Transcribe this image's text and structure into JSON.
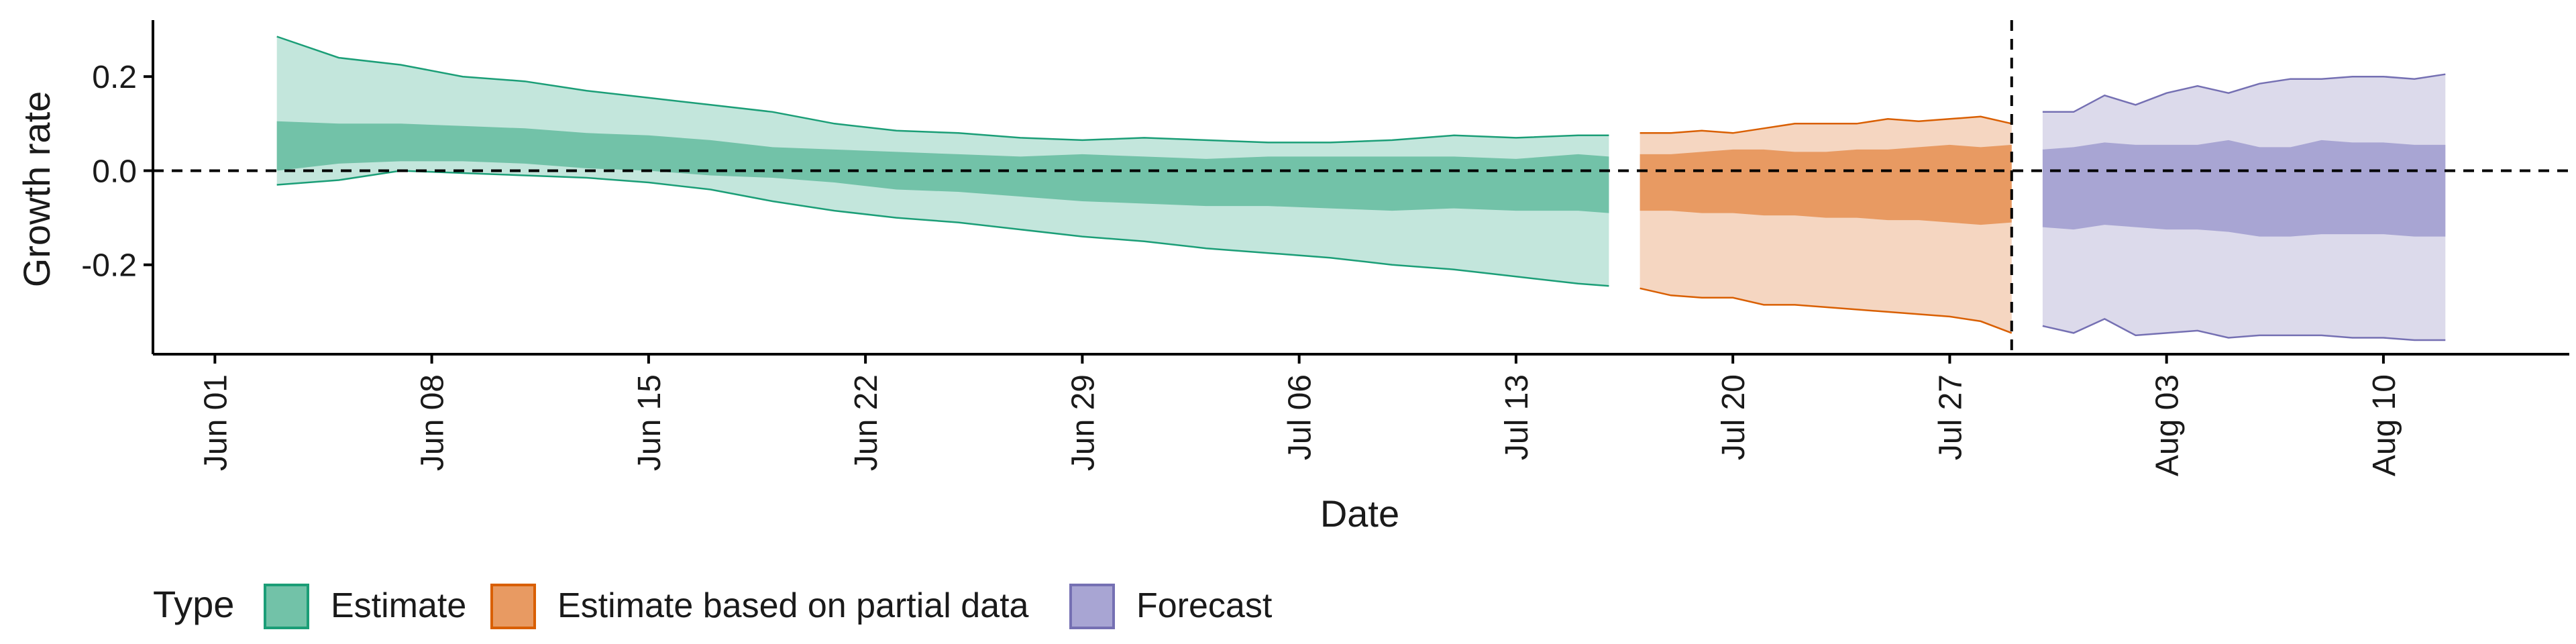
{
  "chart_data": {
    "type": "area",
    "xlabel": "Date",
    "ylabel": "Growth rate",
    "x_type": "date",
    "xlim": [
      "2020-05-30",
      "2020-08-16"
    ],
    "ylim": [
      -0.39,
      0.32
    ],
    "x_ticks": [
      {
        "date": "2020-06-01",
        "label": "Jun 01"
      },
      {
        "date": "2020-06-08",
        "label": "Jun 08"
      },
      {
        "date": "2020-06-15",
        "label": "Jun 15"
      },
      {
        "date": "2020-06-22",
        "label": "Jun 22"
      },
      {
        "date": "2020-06-29",
        "label": "Jun 29"
      },
      {
        "date": "2020-07-06",
        "label": "Jul 06"
      },
      {
        "date": "2020-07-13",
        "label": "Jul 13"
      },
      {
        "date": "2020-07-20",
        "label": "Jul 20"
      },
      {
        "date": "2020-07-27",
        "label": "Jul 27"
      },
      {
        "date": "2020-08-03",
        "label": "Aug 03"
      },
      {
        "date": "2020-08-10",
        "label": "Aug 10"
      }
    ],
    "y_ticks": [
      {
        "value": 0.2,
        "label": "0.2"
      },
      {
        "value": 0.0,
        "label": "0.0"
      },
      {
        "value": -0.2,
        "label": "-0.2"
      }
    ],
    "reference_lines": {
      "horizontal_y": 0.0,
      "vertical_date": "2020-07-29",
      "style": "dashed"
    },
    "grid": false,
    "legend": {
      "title": "Type",
      "position": "bottom-left",
      "entries": [
        "Estimate",
        "Estimate based on partial data",
        "Forecast"
      ]
    },
    "series": [
      {
        "name": "Estimate",
        "fill_outer": "#c3e6dc",
        "line_outer": "#1b9e77",
        "fill_inner": "#72c2a8",
        "dates": [
          "2020-06-03",
          "2020-06-05",
          "2020-06-07",
          "2020-06-09",
          "2020-06-11",
          "2020-06-13",
          "2020-06-15",
          "2020-06-17",
          "2020-06-19",
          "2020-06-21",
          "2020-06-23",
          "2020-06-25",
          "2020-06-27",
          "2020-06-29",
          "2020-07-01",
          "2020-07-03",
          "2020-07-05",
          "2020-07-07",
          "2020-07-09",
          "2020-07-11",
          "2020-07-13",
          "2020-07-15",
          "2020-07-16"
        ],
        "outer_upper": [
          0.285,
          0.24,
          0.225,
          0.2,
          0.19,
          0.17,
          0.155,
          0.14,
          0.125,
          0.1,
          0.085,
          0.08,
          0.07,
          0.065,
          0.07,
          0.065,
          0.06,
          0.06,
          0.065,
          0.075,
          0.07,
          0.075,
          0.075
        ],
        "inner_upper": [
          0.105,
          0.1,
          0.1,
          0.095,
          0.09,
          0.08,
          0.075,
          0.065,
          0.05,
          0.045,
          0.04,
          0.035,
          0.03,
          0.035,
          0.03,
          0.025,
          0.03,
          0.03,
          0.03,
          0.03,
          0.025,
          0.035,
          0.03
        ],
        "inner_lower": [
          0.0,
          0.015,
          0.02,
          0.02,
          0.015,
          0.005,
          0.0,
          -0.01,
          -0.015,
          -0.025,
          -0.04,
          -0.045,
          -0.055,
          -0.065,
          -0.07,
          -0.075,
          -0.075,
          -0.08,
          -0.085,
          -0.08,
          -0.085,
          -0.085,
          -0.09
        ],
        "outer_lower": [
          -0.03,
          -0.02,
          0.0,
          -0.005,
          -0.01,
          -0.015,
          -0.025,
          -0.04,
          -0.065,
          -0.085,
          -0.1,
          -0.11,
          -0.125,
          -0.14,
          -0.15,
          -0.165,
          -0.175,
          -0.185,
          -0.2,
          -0.21,
          -0.225,
          -0.24,
          -0.245
        ]
      },
      {
        "name": "Estimate based on partial data",
        "fill_outer": "#f5d6c1",
        "line_outer": "#d95f02",
        "fill_inner": "#e89a62",
        "dates": [
          "2020-07-17",
          "2020-07-18",
          "2020-07-19",
          "2020-07-20",
          "2020-07-21",
          "2020-07-22",
          "2020-07-23",
          "2020-07-24",
          "2020-07-25",
          "2020-07-26",
          "2020-07-27",
          "2020-07-28",
          "2020-07-29"
        ],
        "outer_upper": [
          0.08,
          0.08,
          0.085,
          0.08,
          0.09,
          0.1,
          0.1,
          0.1,
          0.11,
          0.105,
          0.11,
          0.115,
          0.1
        ],
        "inner_upper": [
          0.035,
          0.035,
          0.04,
          0.045,
          0.045,
          0.04,
          0.04,
          0.045,
          0.045,
          0.05,
          0.055,
          0.05,
          0.055
        ],
        "inner_lower": [
          -0.085,
          -0.085,
          -0.09,
          -0.09,
          -0.095,
          -0.095,
          -0.1,
          -0.1,
          -0.105,
          -0.105,
          -0.11,
          -0.115,
          -0.11
        ],
        "outer_lower": [
          -0.25,
          -0.265,
          -0.27,
          -0.27,
          -0.285,
          -0.285,
          -0.29,
          -0.295,
          -0.3,
          -0.305,
          -0.31,
          -0.32,
          -0.345
        ]
      },
      {
        "name": "Forecast",
        "fill_outer": "#dcdaeb",
        "line_outer": "#7570b3",
        "fill_inner": "#a8a5d3",
        "dates": [
          "2020-07-30",
          "2020-07-31",
          "2020-08-01",
          "2020-08-02",
          "2020-08-03",
          "2020-08-04",
          "2020-08-05",
          "2020-08-06",
          "2020-08-07",
          "2020-08-08",
          "2020-08-09",
          "2020-08-10",
          "2020-08-11",
          "2020-08-12"
        ],
        "outer_upper": [
          0.125,
          0.125,
          0.16,
          0.14,
          0.165,
          0.18,
          0.165,
          0.185,
          0.195,
          0.195,
          0.2,
          0.2,
          0.195,
          0.205
        ],
        "inner_upper": [
          0.045,
          0.05,
          0.06,
          0.055,
          0.055,
          0.055,
          0.065,
          0.05,
          0.05,
          0.065,
          0.06,
          0.06,
          0.055,
          0.055
        ],
        "inner_lower": [
          -0.12,
          -0.125,
          -0.115,
          -0.12,
          -0.125,
          -0.125,
          -0.13,
          -0.14,
          -0.14,
          -0.135,
          -0.135,
          -0.135,
          -0.14,
          -0.14
        ],
        "outer_lower": [
          -0.33,
          -0.345,
          -0.315,
          -0.35,
          -0.345,
          -0.34,
          -0.355,
          -0.35,
          -0.35,
          -0.35,
          -0.355,
          -0.355,
          -0.36,
          -0.36
        ]
      }
    ]
  }
}
